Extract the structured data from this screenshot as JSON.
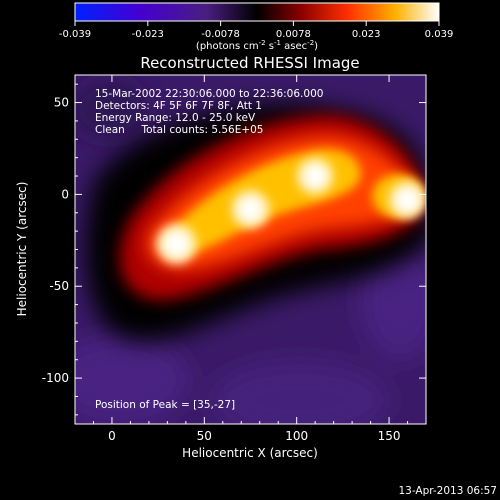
{
  "colorbar": {
    "ticks": [
      "-0.039",
      "-0.023",
      "-0.0078",
      "0.0078",
      "0.023",
      "0.039"
    ],
    "units_main": "(photons cm",
    "units_exp1": "-2",
    "units_mid": " s",
    "units_exp2": "-1",
    "units_tail": " asec",
    "units_exp3": "-2",
    "units_close": ")",
    "colors": [
      "#0020ff",
      "#5a00b0",
      "#4a1e80",
      "#000000",
      "#8a0000",
      "#ff3000",
      "#ffb000",
      "#ffffff"
    ]
  },
  "chart_data": {
    "type": "heatmap",
    "title": "Reconstructed RHESSI Image",
    "xlabel": "Heliocentric X (arcsec)",
    "ylabel": "Heliocentric Y (arcsec)",
    "xlim": [
      -20,
      170
    ],
    "ylim": [
      -125,
      65
    ],
    "xticks": [
      0,
      50,
      100,
      150
    ],
    "yticks": [
      50,
      0,
      -50,
      -100
    ],
    "clim": [
      -0.039,
      0.039
    ],
    "peak": {
      "x": 35,
      "y": -27
    },
    "sources": [
      {
        "x": 35,
        "y": -27,
        "value": 0.039
      },
      {
        "x": 75,
        "y": -8,
        "value": 0.036
      },
      {
        "x": 110,
        "y": 10,
        "value": 0.034
      },
      {
        "x": 160,
        "y": -3,
        "value": 0.035
      }
    ],
    "info": [
      "15-Mar-2002 22:30:06.000 to 22:36:06.000",
      "Detectors: 4F 5F 6F 7F 8F, Att 1",
      "Energy Range: 12.0 - 25.0 keV",
      "Clean     Total counts: 5.56E+05"
    ],
    "peak_label": "Position of Peak = [35,-27]"
  },
  "footer": {
    "date": "13-Apr-2013 06:57"
  }
}
